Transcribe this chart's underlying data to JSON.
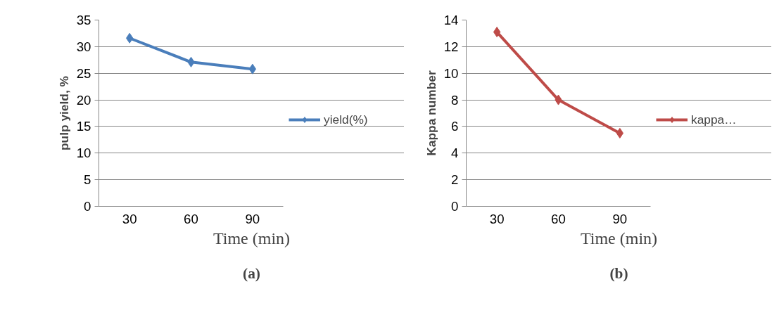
{
  "chart_data": [
    {
      "type": "line",
      "categories": [
        "30",
        "60",
        "90"
      ],
      "xlabel": "Time (min)",
      "ylabel": "pulp yield, %",
      "ylim": [
        0,
        35
      ],
      "yticks": [
        0,
        5,
        10,
        15,
        20,
        25,
        30,
        35
      ],
      "grid": "y",
      "legend": "right",
      "marker": "diamond",
      "line_style": "solid",
      "series": [
        {
          "name": "yield(%)",
          "color": "#4a7ebb",
          "values": [
            31.6,
            27.1,
            25.8
          ]
        }
      ],
      "annotations": [
        "(a)"
      ]
    },
    {
      "type": "line",
      "categories": [
        "30",
        "60",
        "90"
      ],
      "xlabel": "Time (min)",
      "ylabel": "Kappa number",
      "ylim": [
        0,
        14
      ],
      "yticks": [
        0,
        2,
        4,
        6,
        8,
        10,
        12,
        14
      ],
      "grid": "y",
      "legend": "right",
      "marker": "diamond",
      "line_style": "solid",
      "series": [
        {
          "name": "kappa…",
          "color": "#be4b48",
          "values": [
            13.1,
            8.0,
            5.5
          ]
        }
      ],
      "annotations": [
        "(b)"
      ]
    }
  ]
}
